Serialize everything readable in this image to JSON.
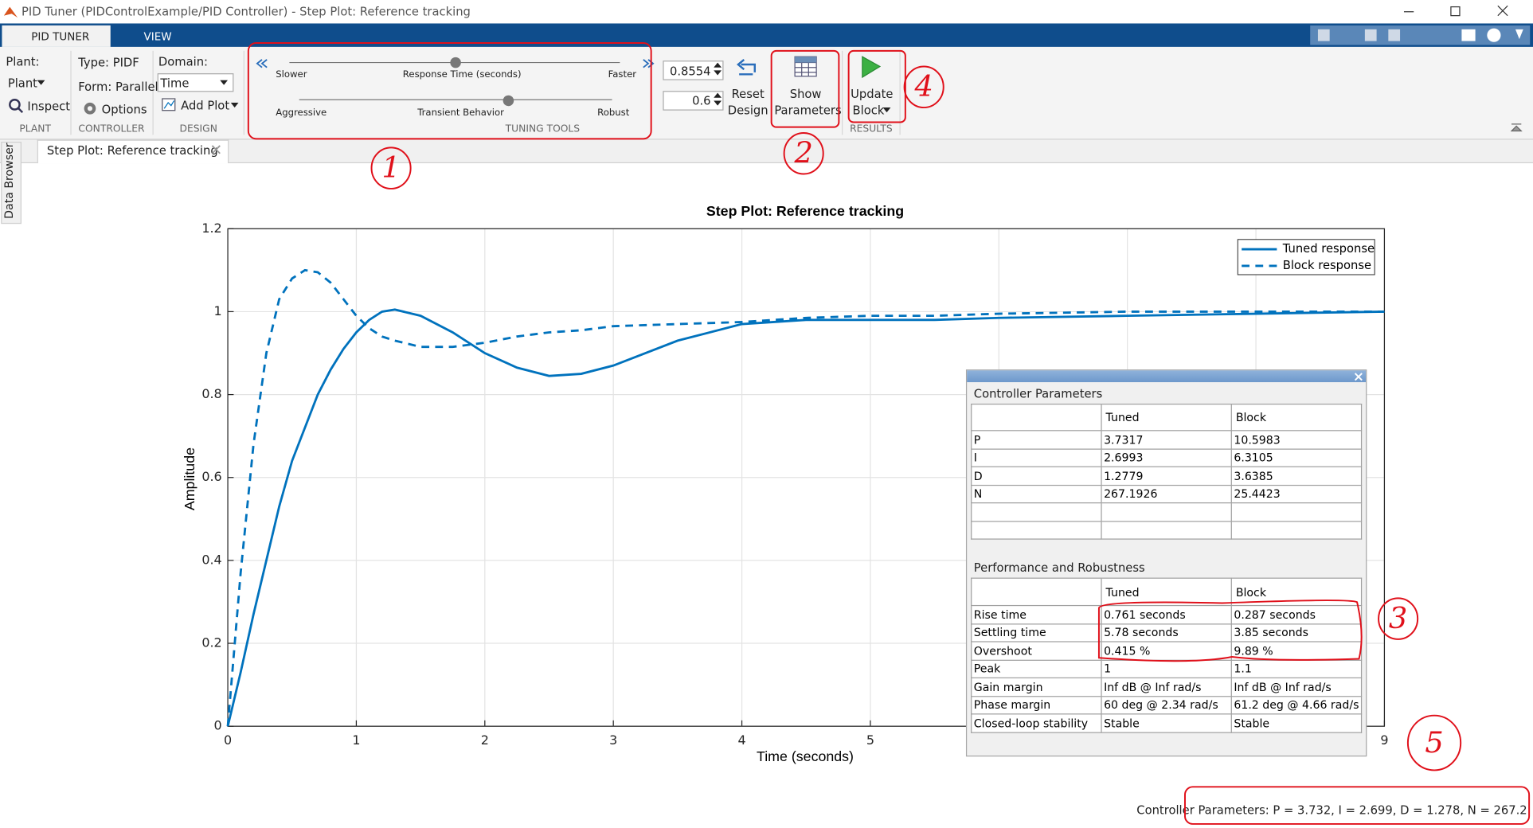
{
  "window_title": "PID Tuner (PIDControlExample/PID Controller) - Step Plot: Reference tracking",
  "toolbar": {
    "tabs": [
      "PID TUNER",
      "VIEW"
    ],
    "plant": {
      "label": "Plant:",
      "menu": "Plant",
      "inspect": "Inspect",
      "section": "PLANT"
    },
    "controller": {
      "type": "Type: PIDF",
      "form": "Form: Parallel",
      "options": "Options",
      "section": "CONTROLLER"
    },
    "design": {
      "domain_label": "Domain:",
      "domain": "Time",
      "add_plot": "Add Plot",
      "section": "DESIGN"
    },
    "tuning": {
      "response_slower": "Slower",
      "response_label": "Response Time (seconds)",
      "response_faster": "Faster",
      "response_value": "0.8554",
      "transient_aggressive": "Aggressive",
      "transient_label": "Transient Behavior",
      "transient_robust": "Robust",
      "transient_value": "0.6",
      "section": "TUNING TOOLS"
    },
    "results": {
      "reset": [
        "Reset",
        "Design"
      ],
      "show": [
        "Show",
        "Parameters"
      ],
      "update": [
        "Update",
        "Block"
      ],
      "section": "RESULTS"
    }
  },
  "document_tab": "Step Plot: Reference tracking",
  "side_tab": "Data Browser",
  "chart_data": {
    "type": "line",
    "title": "Step Plot: Reference tracking",
    "x_label": "Time (seconds)",
    "y_label": "Amplitude",
    "x": [
      0,
      0.1,
      0.2,
      0.3,
      0.4,
      0.5,
      0.6,
      0.7,
      0.8,
      0.9,
      1.0,
      1.1,
      1.2,
      1.3,
      1.5,
      1.75,
      2.0,
      2.25,
      2.5,
      2.75,
      3.0,
      3.5,
      4.0,
      4.5,
      5,
      5.5,
      6,
      7,
      8,
      9
    ],
    "series": [
      {
        "name": "Tuned response",
        "color": "#0072bd",
        "dash": false,
        "values": [
          0,
          0.13,
          0.27,
          0.4,
          0.53,
          0.64,
          0.72,
          0.8,
          0.86,
          0.91,
          0.95,
          0.98,
          1.0,
          1.005,
          0.99,
          0.95,
          0.9,
          0.865,
          0.845,
          0.85,
          0.87,
          0.93,
          0.97,
          0.98,
          0.98,
          0.98,
          0.985,
          0.99,
          0.995,
          1.0
        ]
      },
      {
        "name": "Block response",
        "color": "#0072bd",
        "dash": true,
        "values": [
          0,
          0.37,
          0.68,
          0.9,
          1.03,
          1.08,
          1.1,
          1.095,
          1.07,
          1.03,
          0.99,
          0.96,
          0.94,
          0.93,
          0.915,
          0.915,
          0.925,
          0.94,
          0.95,
          0.955,
          0.965,
          0.97,
          0.975,
          0.985,
          0.99,
          0.99,
          0.995,
          1.0,
          1.0,
          1.0
        ]
      }
    ],
    "xlim": [
      0,
      9
    ],
    "xticks": [
      0,
      1,
      2,
      3,
      4,
      5,
      6,
      7,
      8,
      9
    ],
    "ylim": [
      0,
      1.2
    ],
    "yticks": [
      0,
      0.2,
      0.4,
      0.6,
      0.8,
      1,
      1.2
    ],
    "grid": true,
    "legend": "upper right"
  },
  "controller_parameters": {
    "title": "Controller Parameters",
    "columns": [
      "Tuned",
      "Block"
    ],
    "rows": [
      [
        "P",
        "3.7317",
        "10.5983"
      ],
      [
        "I",
        "2.6993",
        "6.3105"
      ],
      [
        "D",
        "1.2779",
        "3.6385"
      ],
      [
        "N",
        "267.1926",
        "25.4423"
      ]
    ]
  },
  "performance": {
    "title": "Performance and Robustness",
    "columns": [
      "Tuned",
      "Block"
    ],
    "rows": [
      [
        "Rise time",
        "0.761 seconds",
        "0.287 seconds"
      ],
      [
        "Settling time",
        "5.78 seconds",
        "3.85 seconds"
      ],
      [
        "Overshoot",
        "0.415 %",
        "9.89 %"
      ],
      [
        "Peak",
        "1",
        "1.1"
      ],
      [
        "Gain margin",
        "Inf dB @ Inf rad/s",
        "Inf dB @ Inf rad/s"
      ],
      [
        "Phase margin",
        "60 deg @ 2.34 rad/s",
        "61.2 deg @ 4.66 rad/s"
      ],
      [
        "Closed-loop stability",
        "Stable",
        "Stable"
      ]
    ]
  },
  "status": "Controller Parameters: P = 3.732, I = 2.699, D = 1.278, N = 267.2",
  "annotations": [
    "1",
    "2",
    "3",
    "4",
    "5"
  ]
}
